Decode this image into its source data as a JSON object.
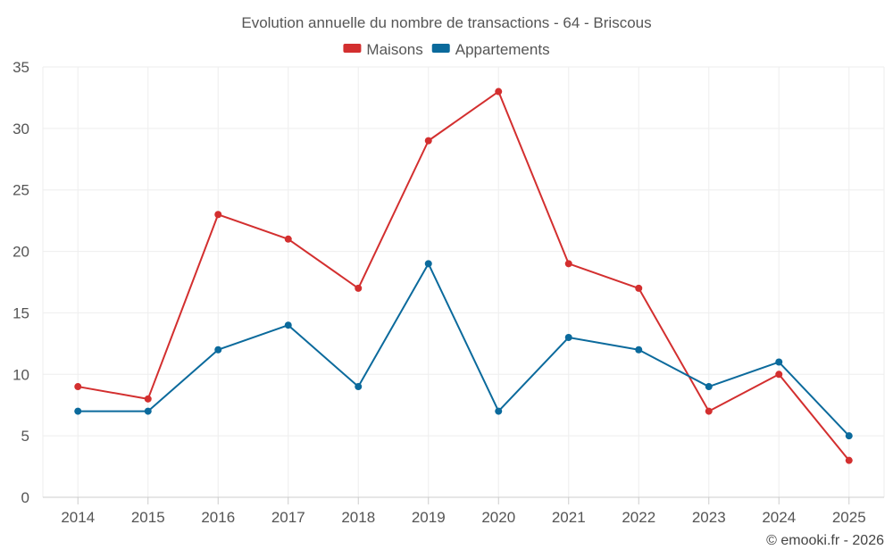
{
  "chart_data": {
    "type": "line",
    "title": "Evolution annuelle du nombre de transactions - 64 - Briscous",
    "categories": [
      "2014",
      "2015",
      "2016",
      "2017",
      "2018",
      "2019",
      "2020",
      "2021",
      "2022",
      "2023",
      "2024",
      "2025"
    ],
    "series": [
      {
        "name": "Maisons",
        "color": "#d32f2f",
        "values": [
          9,
          8,
          23,
          21,
          17,
          29,
          33,
          19,
          17,
          7,
          10,
          3
        ]
      },
      {
        "name": "Appartements",
        "color": "#0b6a9c",
        "values": [
          7,
          7,
          12,
          14,
          9,
          19,
          7,
          13,
          12,
          9,
          11,
          5
        ]
      }
    ],
    "ylim": [
      0,
      35
    ],
    "yticks": [
      0,
      5,
      10,
      15,
      20,
      25,
      30,
      35
    ],
    "grid": true,
    "legend_position": "top-center",
    "xlabel": "",
    "ylabel": ""
  },
  "credit": "© emooki.fr - 2026"
}
